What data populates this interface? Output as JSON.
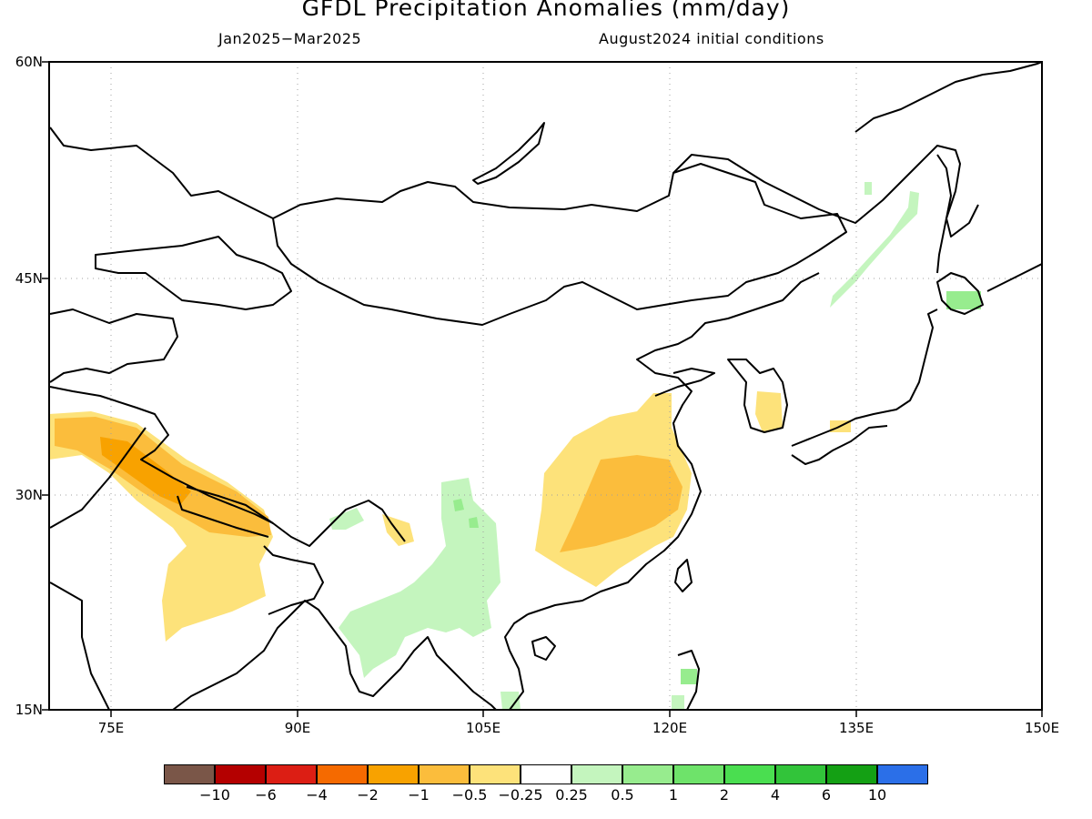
{
  "title": "GFDL Precipitation Anomalies (mm/day)",
  "period": "Jan2025−Mar2025",
  "initial_conditions": "August2024 initial conditions",
  "lat_labels": [
    "60N",
    "45N",
    "30N",
    "15N"
  ],
  "lon_labels": [
    "75E",
    "90E",
    "105E",
    "120E",
    "135E",
    "150E"
  ],
  "colorbar": {
    "colors": [
      "#7a5648",
      "#b40000",
      "#dc1e14",
      "#f56a00",
      "#f8a200",
      "#fbbd3c",
      "#fde27a",
      "#ffffff",
      "#c4f5be",
      "#97ec8e",
      "#6ee36a",
      "#4ade50",
      "#32c43a",
      "#14a014",
      "#2b6fe8"
    ],
    "labels": [
      "−10",
      "−6",
      "−4",
      "−2",
      "−1",
      "−0.5",
      "−0.25",
      "0.25",
      "0.5",
      "1",
      "2",
      "4",
      "6",
      "10"
    ]
  },
  "chart_data": {
    "type": "map",
    "title": "GFDL Precipitation Anomalies (mm/day)",
    "lon_range": [
      70,
      150
    ],
    "lat_range": [
      15,
      60
    ],
    "grid": true,
    "anomaly_regions": [
      {
        "region": "Himalaya / northern India",
        "class": "-1 to -2"
      },
      {
        "region": "North-central India",
        "class": "-0.25 to -0.5"
      },
      {
        "region": "Southeast China",
        "class": "-1 to -2"
      },
      {
        "region": "Southern Korea",
        "class": "-0.25 to -0.5"
      },
      {
        "region": "Southwest China / Indochina",
        "class": "0.25 to 0.5"
      },
      {
        "region": "Northeast China",
        "class": "0.25 to 0.5"
      },
      {
        "region": "Hokkaido",
        "class": "0.5 to 1"
      },
      {
        "region": "Philippines",
        "class": "0.5 to 1"
      }
    ]
  }
}
